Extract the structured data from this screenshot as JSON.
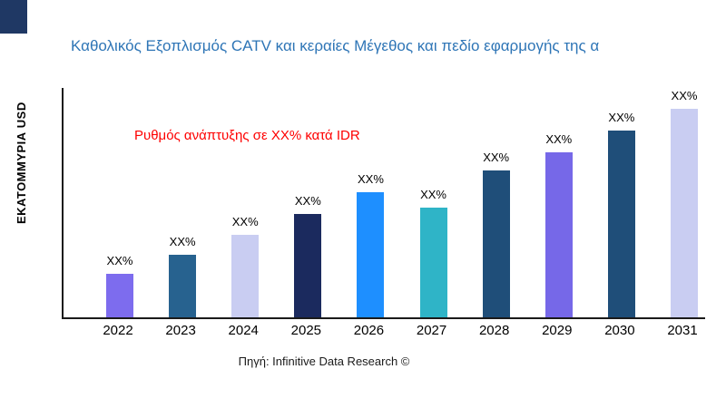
{
  "chart_data": {
    "type": "bar",
    "title": "Καθολικός Εξοπλισμός CATV και κεραίες Μέγεθος και πεδίο εφαρμογής της α",
    "ylabel": "ΕΚΑΤΟΜΜΥΡΙΑ USD",
    "xlabel": "",
    "annotation": "Ρυθμός ανάπτυξης σε XX% κατά IDR",
    "annotation_color": "#fe0000",
    "title_color": "#2e75b6",
    "source_note": "Πηγή: Infinitive Data Research ©",
    "categories": [
      "2022",
      "2023",
      "2024",
      "2025",
      "2026",
      "2027",
      "2028",
      "2029",
      "2030",
      "2031"
    ],
    "values": [
      48,
      69,
      91,
      114,
      138,
      121,
      162,
      182,
      206,
      230
    ],
    "value_labels": [
      "XX%",
      "XX%",
      "XX%",
      "XX%",
      "XX%",
      "XX%",
      "XX%",
      "XX%",
      "XX%",
      "XX%"
    ],
    "bar_colors": [
      "#7d6cee",
      "#27628f",
      "#c9cdf2",
      "#1b2a5e",
      "#1e8fff",
      "#2fb4c7",
      "#1f4e79",
      "#7668e8",
      "#1f4e79",
      "#c9cdf2"
    ],
    "ylim": null,
    "grid": false,
    "legend": false
  }
}
